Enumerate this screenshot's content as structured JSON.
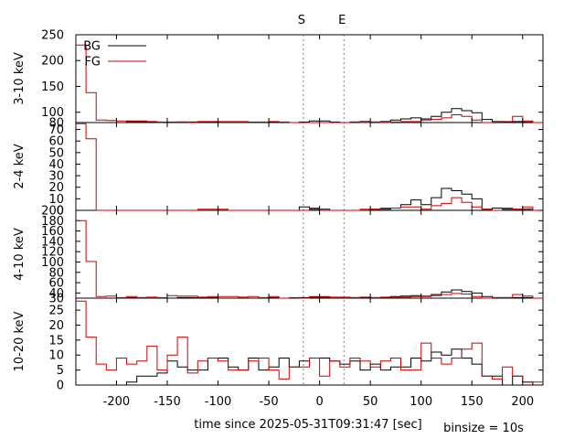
{
  "chart_data": {
    "type": "histogram-step",
    "xlabel": "time since 2025-05-31T09:31:47 [sec]",
    "binsize_label": "binsize = 10s",
    "xlim": [
      -240,
      220
    ],
    "xticks": [
      -200,
      -150,
      -100,
      -50,
      0,
      50,
      100,
      150,
      200
    ],
    "bin_width": 10,
    "bin_starts": [
      -240,
      -230,
      -220,
      -210,
      -200,
      -190,
      -180,
      -170,
      -160,
      -150,
      -140,
      -130,
      -120,
      -110,
      -100,
      -90,
      -80,
      -70,
      -60,
      -50,
      -40,
      -30,
      -20,
      -10,
      0,
      10,
      20,
      30,
      40,
      50,
      60,
      70,
      80,
      90,
      100,
      110,
      120,
      130,
      140,
      150,
      160,
      170,
      180,
      190,
      200,
      210
    ],
    "markers": [
      {
        "label": "S",
        "x": -16
      },
      {
        "label": "E",
        "x": 24
      }
    ],
    "legend": {
      "position": "top-left",
      "entries": [
        {
          "label": "BG",
          "color": "#000000"
        },
        {
          "label": "FG",
          "color": "#cc0000"
        }
      ]
    },
    "panels": [
      {
        "ylabel": "3-10 keV",
        "ylim": [
          80,
          250
        ],
        "yticks": [
          80,
          100,
          150,
          200,
          250
        ],
        "series": [
          {
            "name": "BG",
            "color": "#000000",
            "values": [
              80,
              80,
              80,
              80,
              80,
              82,
              82,
              81,
              80,
              80,
              81,
              81,
              81,
              81,
              80,
              80,
              80,
              80,
              80,
              81,
              80,
              80,
              81,
              83,
              83,
              81,
              80,
              81,
              82,
              81,
              82,
              85,
              87,
              89,
              87,
              92,
              100,
              107,
              103,
              99,
              86,
              82,
              81,
              82,
              81,
              80
            ]
          },
          {
            "name": "FG",
            "color": "#cc0000",
            "values": [
              230,
              138,
              85,
              84,
              83,
              83,
              83,
              82,
              81,
              81,
              81,
              80,
              82,
              82,
              82,
              82,
              82,
              81,
              81,
              82,
              81,
              80,
              80,
              80,
              80,
              80,
              80,
              81,
              80,
              81,
              80,
              81,
              82,
              82,
              85,
              86,
              89,
              95,
              92,
              85,
              80,
              81,
              82,
              92,
              83,
              80
            ]
          }
        ]
      },
      {
        "ylabel": "2-4 keV",
        "ylim": [
          0,
          76
        ],
        "yticks": [
          0,
          10,
          20,
          30,
          40,
          50,
          60,
          70
        ],
        "series": [
          {
            "name": "BG",
            "color": "#000000",
            "values": [
              0,
              0,
              0,
              0,
              0,
              0,
              0,
              0,
              0,
              0,
              0,
              0,
              0,
              0,
              0,
              0,
              0,
              0,
              0,
              0,
              0,
              0,
              3,
              1,
              1,
              0,
              0,
              0,
              0,
              1,
              1,
              2,
              5,
              9,
              5,
              11,
              19,
              17,
              14,
              10,
              1,
              2,
              1,
              1,
              1,
              0
            ]
          },
          {
            "name": "FG",
            "color": "#cc0000",
            "values": [
              75,
              62,
              0,
              0,
              0,
              0,
              0,
              0,
              0,
              0,
              0,
              0,
              1,
              1,
              1,
              0,
              0,
              0,
              0,
              0,
              0,
              0,
              0,
              2,
              0,
              0,
              0,
              0,
              1,
              1,
              2,
              2,
              3,
              3,
              1,
              4,
              6,
              11,
              7,
              3,
              1,
              0,
              2,
              1,
              3,
              0
            ]
          }
        ]
      },
      {
        "ylabel": "4-10 keV",
        "ylim": [
          30,
          200
        ],
        "yticks": [
          30,
          40,
          60,
          80,
          100,
          120,
          140,
          160,
          180,
          200
        ],
        "series": [
          {
            "name": "BG",
            "color": "#000000",
            "values": [
              30,
              30,
              30,
              30,
              30,
              31,
              31,
              30,
              30,
              30,
              31,
              31,
              31,
              31,
              30,
              30,
              30,
              30,
              30,
              31,
              30,
              30,
              31,
              32,
              32,
              30,
              30,
              31,
              31,
              31,
              31,
              33,
              34,
              35,
              34,
              37,
              42,
              46,
              43,
              40,
              33,
              31,
              31,
              31,
              31,
              30
            ]
          },
          {
            "name": "FG",
            "color": "#cc0000",
            "values": [
              180,
              101,
              33,
              34,
              31,
              33,
              31,
              32,
              31,
              35,
              34,
              34,
              32,
              33,
              33,
              33,
              32,
              33,
              31,
              33,
              30,
              31,
              30,
              33,
              33,
              32,
              32,
              31,
              32,
              31,
              32,
              32,
              32,
              33,
              33,
              35,
              37,
              39,
              38,
              33,
              30,
              31,
              31,
              37,
              34,
              30
            ]
          }
        ]
      },
      {
        "ylabel": "10-20 keV",
        "ylim": [
          0,
          29
        ],
        "yticks": [
          0,
          5,
          10,
          15,
          20,
          25
        ],
        "series": [
          {
            "name": "BG",
            "color": "#000000",
            "values": [
              0,
              0,
              0,
              0,
              0,
              1,
              3,
              3,
              4,
              8,
              6,
              5,
              5,
              9,
              9,
              6,
              5,
              9,
              5,
              6,
              9,
              6,
              8,
              9,
              9,
              8,
              7,
              8,
              5,
              7,
              5,
              6,
              6,
              9,
              8,
              11,
              10,
              12,
              9,
              7,
              3,
              3,
              0,
              3,
              1,
              0
            ]
          },
          {
            "name": "FG",
            "color": "#cc0000",
            "values": [
              28,
              16,
              7,
              5,
              9,
              7,
              8,
              13,
              5,
              10,
              16,
              4,
              8,
              9,
              8,
              5,
              5,
              8,
              9,
              5,
              2,
              6,
              6,
              9,
              3,
              8,
              6,
              9,
              8,
              6,
              8,
              9,
              5,
              5,
              14,
              9,
              7,
              9,
              12,
              14,
              3,
              2,
              6,
              3,
              1,
              1
            ]
          }
        ]
      }
    ]
  }
}
